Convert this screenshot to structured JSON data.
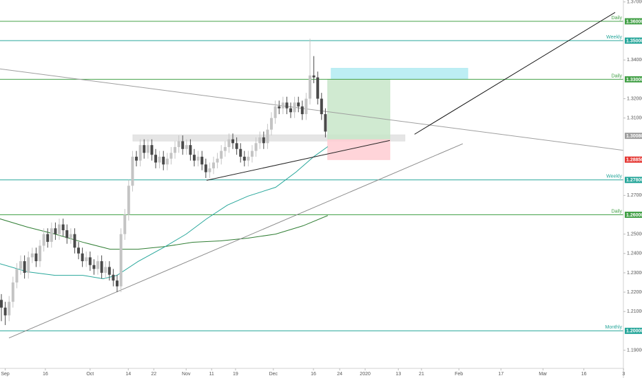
{
  "chart_data": {
    "type": "candlestick",
    "up_color": "#c4c4c4",
    "down_color": "#4a4a4a",
    "xlim": [
      -0.36,
      161.25
    ],
    "ylim": [
      1.1806,
      1.371
    ],
    "xticks": [
      {
        "value": 1,
        "label": "Sep"
      },
      {
        "value": 11.4,
        "label": "16"
      },
      {
        "value": 23,
        "label": "Oct"
      },
      {
        "value": 32.9,
        "label": "14"
      },
      {
        "value": 39.5,
        "label": "22"
      },
      {
        "value": 47.9,
        "label": "Nov"
      },
      {
        "value": 54.5,
        "label": "11"
      },
      {
        "value": 60.7,
        "label": "19"
      },
      {
        "value": 70.5,
        "label": "Dec"
      },
      {
        "value": 80.9,
        "label": "16"
      },
      {
        "value": 87.7,
        "label": "24"
      },
      {
        "value": 94.3,
        "label": "2020"
      },
      {
        "value": 102.9,
        "label": "13"
      },
      {
        "value": 108.9,
        "label": "21"
      },
      {
        "value": 118.6,
        "label": "Feb"
      },
      {
        "value": 129.5,
        "label": "17"
      },
      {
        "value": 140.4,
        "label": "Mar"
      },
      {
        "value": 151,
        "label": "16"
      },
      {
        "value": 161.3,
        "label": "3"
      }
    ],
    "yticks": [
      {
        "value": 1.37,
        "label": "1.37000"
      },
      {
        "value": 1.34,
        "label": "1.34000"
      },
      {
        "value": 1.32,
        "label": "1.32000"
      },
      {
        "value": 1.31,
        "label": "1.31000"
      },
      {
        "value": 1.27,
        "label": "1.27000"
      },
      {
        "value": 1.25,
        "label": "1.25000"
      },
      {
        "value": 1.24,
        "label": "1.24000"
      },
      {
        "value": 1.23,
        "label": "1.23000"
      },
      {
        "value": 1.22,
        "label": "1.22000"
      },
      {
        "value": 1.21,
        "label": "1.21000"
      },
      {
        "value": 1.19,
        "label": "1.19000"
      }
    ],
    "open": [
      1.216,
      1.212,
      1.208,
      1.215,
      1.225,
      1.232,
      1.236,
      1.23,
      1.238,
      1.24,
      1.236,
      1.244,
      1.25,
      1.246,
      1.253,
      1.25,
      1.255,
      1.252,
      1.248,
      1.25,
      1.243,
      1.24,
      1.236,
      1.238,
      1.234,
      1.232,
      1.236,
      1.23,
      1.233,
      1.229,
      1.226,
      1.223,
      1.25,
      1.26,
      1.275,
      1.29,
      1.288,
      1.296,
      1.292,
      1.296,
      1.291,
      1.287,
      1.29,
      1.286,
      1.289,
      1.292,
      1.295,
      1.298,
      1.294,
      1.296,
      1.291,
      1.288,
      1.29,
      1.286,
      1.282,
      1.284,
      1.287,
      1.289,
      1.293,
      1.295,
      1.299,
      1.297,
      1.294,
      1.29,
      1.288,
      1.29,
      1.293,
      1.297,
      1.3,
      1.297,
      1.304,
      1.31,
      1.316,
      1.315,
      1.318,
      1.315,
      1.313,
      1.318,
      1.316,
      1.312,
      1.32,
      1.332,
      1.331,
      1.32,
      1.312
    ],
    "high": [
      1.219,
      1.215,
      1.218,
      1.228,
      1.235,
      1.239,
      1.239,
      1.241,
      1.243,
      1.243,
      1.247,
      1.253,
      1.253,
      1.256,
      1.256,
      1.258,
      1.258,
      1.255,
      1.253,
      1.253,
      1.246,
      1.243,
      1.241,
      1.241,
      1.237,
      1.239,
      1.239,
      1.236,
      1.236,
      1.232,
      1.229,
      1.253,
      1.263,
      1.278,
      1.293,
      1.293,
      1.299,
      1.299,
      1.299,
      1.299,
      1.294,
      1.293,
      1.293,
      1.292,
      1.295,
      1.298,
      1.301,
      1.301,
      1.299,
      1.299,
      1.294,
      1.293,
      1.293,
      1.289,
      1.287,
      1.29,
      1.292,
      1.296,
      1.298,
      1.302,
      1.302,
      1.3,
      1.297,
      1.293,
      1.293,
      1.296,
      1.3,
      1.303,
      1.303,
      1.307,
      1.313,
      1.319,
      1.319,
      1.321,
      1.321,
      1.318,
      1.321,
      1.321,
      1.319,
      1.323,
      1.351,
      1.342,
      1.334,
      1.323,
      1.315
    ],
    "low": [
      1.205,
      1.203,
      1.205,
      1.212,
      1.222,
      1.229,
      1.227,
      1.227,
      1.235,
      1.233,
      1.233,
      1.241,
      1.243,
      1.243,
      1.247,
      1.247,
      1.249,
      1.245,
      1.245,
      1.24,
      1.237,
      1.233,
      1.233,
      1.231,
      1.229,
      1.229,
      1.227,
      1.227,
      1.226,
      1.223,
      1.22,
      1.22,
      1.247,
      1.257,
      1.272,
      1.285,
      1.285,
      1.289,
      1.289,
      1.288,
      1.284,
      1.284,
      1.283,
      1.283,
      1.286,
      1.289,
      1.292,
      1.291,
      1.291,
      1.288,
      1.285,
      1.285,
      1.283,
      1.279,
      1.279,
      1.281,
      1.284,
      1.286,
      1.29,
      1.292,
      1.294,
      1.291,
      1.287,
      1.285,
      1.285,
      1.287,
      1.29,
      1.294,
      1.294,
      1.294,
      1.301,
      1.307,
      1.312,
      1.312,
      1.312,
      1.31,
      1.31,
      1.313,
      1.309,
      1.309,
      1.317,
      1.328,
      1.317,
      1.309,
      1.3
    ],
    "close": [
      1.212,
      1.208,
      1.215,
      1.225,
      1.232,
      1.236,
      1.23,
      1.238,
      1.24,
      1.236,
      1.244,
      1.25,
      1.246,
      1.253,
      1.25,
      1.255,
      1.252,
      1.248,
      1.25,
      1.243,
      1.24,
      1.236,
      1.238,
      1.234,
      1.232,
      1.236,
      1.23,
      1.233,
      1.229,
      1.226,
      1.223,
      1.25,
      1.26,
      1.275,
      1.29,
      1.288,
      1.296,
      1.292,
      1.296,
      1.291,
      1.287,
      1.29,
      1.286,
      1.289,
      1.292,
      1.295,
      1.298,
      1.294,
      1.296,
      1.291,
      1.288,
      1.29,
      1.286,
      1.282,
      1.284,
      1.287,
      1.289,
      1.293,
      1.295,
      1.299,
      1.297,
      1.294,
      1.29,
      1.288,
      1.29,
      1.293,
      1.297,
      1.3,
      1.297,
      1.304,
      1.31,
      1.316,
      1.315,
      1.318,
      1.315,
      1.313,
      1.318,
      1.316,
      1.312,
      1.32,
      1.332,
      1.331,
      1.32,
      1.312,
      1.303
    ],
    "levels": [
      {
        "price": 1.36,
        "name": "Daily",
        "label": "1.36000",
        "color": "#43a047"
      },
      {
        "price": 1.35,
        "name": "Weekly",
        "label": "1.35000",
        "color": "#26a69a"
      },
      {
        "price": 1.33,
        "name": "Daily",
        "label": "1.33000",
        "color": "#43a047"
      },
      {
        "price": 1.278,
        "name": "Weekly",
        "label": "1.27800",
        "color": "#26a69a"
      },
      {
        "price": 1.26,
        "name": "Daily",
        "label": "1.26000",
        "color": "#43a047"
      },
      {
        "price": 1.2,
        "name": "Monthly",
        "label": "1.20000",
        "color": "#26a69a"
      }
    ],
    "price_tags": [
      {
        "price": 1.3008,
        "label": "1.30080",
        "color": "#9e9e9e"
      },
      {
        "price": 1.2885,
        "label": "1.28850",
        "color": "#e53935"
      }
    ],
    "boxes": [
      {
        "x": [
          34.1,
          104.6
        ],
        "y": [
          1.3013,
          1.2981
        ],
        "color": "#e0e0e0"
      },
      {
        "x": [
          85.5,
          120.9
        ],
        "y": [
          1.3357,
          1.3304
        ],
        "color": "#b2ebf2"
      },
      {
        "x": [
          84.6,
          100.7
        ],
        "y": [
          1.33,
          1.2988
        ],
        "color": "#c8e6c9"
      },
      {
        "x": [
          84.6,
          100.7
        ],
        "y": [
          1.2988,
          1.2885
        ],
        "color": "#ffcdd2"
      }
    ],
    "trendlines": [
      {
        "x": [
          -0.36,
          161.25
        ],
        "y": [
          1.3354,
          1.2933
        ],
        "color": "#9e9e9e"
      },
      {
        "x": [
          1.96,
          119.6
        ],
        "y": [
          1.1963,
          1.2967
        ],
        "color": "#8a8a8a"
      },
      {
        "x": [
          53.2,
          100.7
        ],
        "y": [
          1.2778,
          1.2984
        ],
        "color": "#222222"
      },
      {
        "x": [
          107.1,
          159.1
        ],
        "y": [
          1.3016,
          1.3646
        ],
        "color": "#111111"
      }
    ],
    "indicators": [
      {
        "color": "#2e7d32",
        "x": [
          -0.4,
          6.8,
          13.9,
          21.1,
          28.2,
          35.4,
          42.5,
          49.6,
          56.8,
          63.9,
          71.1,
          78.2,
          84.6
        ],
        "values": [
          1.2579,
          1.2536,
          1.25,
          1.2458,
          1.2422,
          1.2422,
          1.2436,
          1.2458,
          1.2465,
          1.2479,
          1.25,
          1.2543,
          1.2596
        ]
      },
      {
        "color": "#26a69a",
        "x": [
          -0.4,
          6.8,
          13.9,
          21.1,
          26.4,
          30,
          35.4,
          42.5,
          47.9,
          53.2,
          58.6,
          63.9,
          71.1,
          76.4,
          80.9,
          84.6
        ],
        "values": [
          1.2347,
          1.2305,
          1.2287,
          1.2287,
          1.2269,
          1.2287,
          1.2358,
          1.2436,
          1.25,
          1.2579,
          1.265,
          1.2696,
          1.2742,
          1.2821,
          1.2899,
          1.2952
        ]
      }
    ]
  }
}
